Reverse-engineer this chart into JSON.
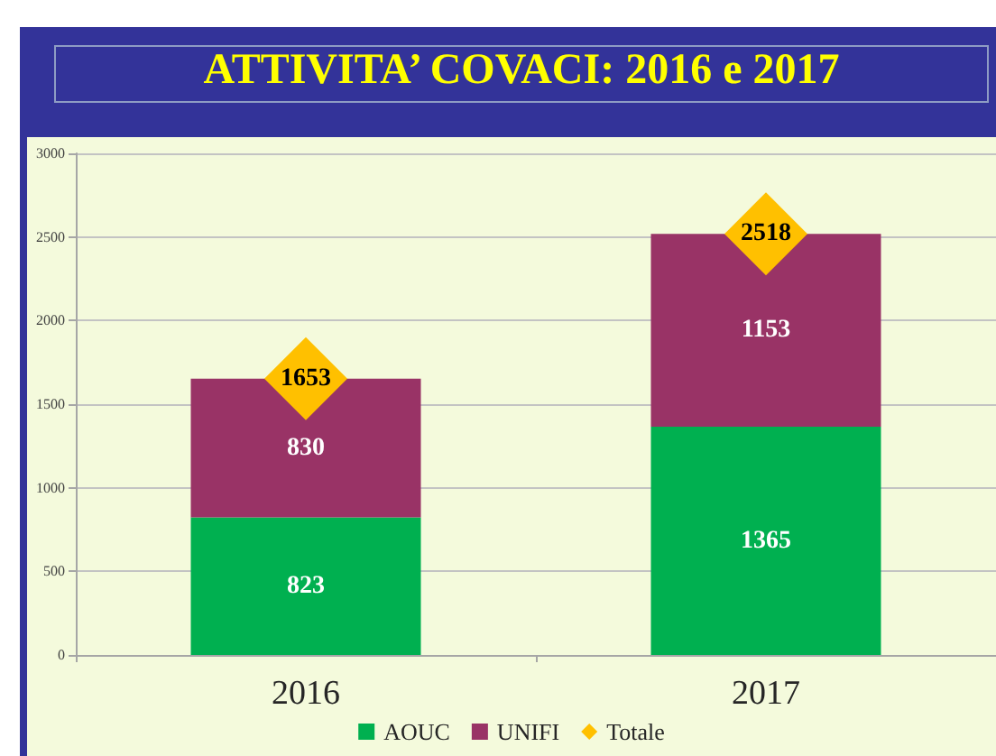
{
  "chart_data": {
    "type": "bar",
    "title": "ATTIVITA’ COVACI: 2016 e 2017",
    "categories": [
      "2016",
      "2017"
    ],
    "stacked": true,
    "series": [
      {
        "name": "AOUC",
        "color": "#00b050",
        "values": [
          823,
          1365
        ]
      },
      {
        "name": "UNIFI",
        "color": "#993366",
        "values": [
          830,
          1153
        ]
      },
      {
        "name": "Totale",
        "type": "scatter",
        "marker": "diamond",
        "color": "#ffc000",
        "values": [
          1653,
          2518
        ]
      }
    ],
    "ylim": [
      0,
      3000
    ],
    "yticks": [
      0,
      500,
      1000,
      1500,
      2000,
      2500,
      3000
    ],
    "grid": "y",
    "legend": "bottom",
    "data_labels": true
  }
}
